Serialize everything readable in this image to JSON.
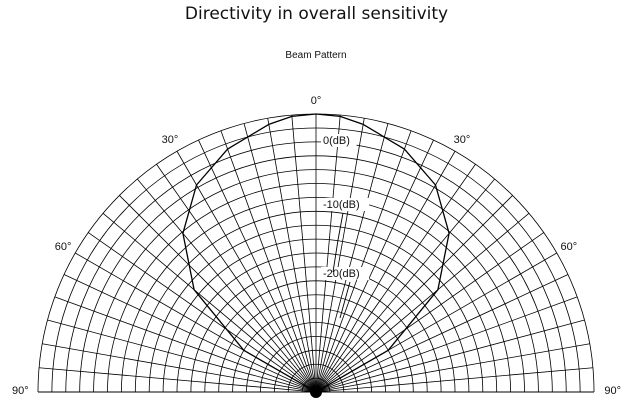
{
  "title": "Directivity in overall sensitivity",
  "chart_data": {
    "type": "polar",
    "subtitle": "Beam Pattern",
    "angle_range_deg": [
      -90,
      90
    ],
    "angle_labels": [
      {
        "angle": 0,
        "text": "0°"
      },
      {
        "angle": -30,
        "text": "30°"
      },
      {
        "angle": 30,
        "text": "30°"
      },
      {
        "angle": -60,
        "text": "60°"
      },
      {
        "angle": 60,
        "text": "60°"
      },
      {
        "angle": -90,
        "text": "90°"
      },
      {
        "angle": 90,
        "text": "90°"
      }
    ],
    "radial_labels": [
      {
        "value": 0,
        "text": "0(dB)"
      },
      {
        "value": -10,
        "text": "-10(dB)"
      },
      {
        "value": -20,
        "text": "-20(dB)"
      }
    ],
    "grid": true,
    "series": [
      {
        "angles_deg": [
          -90,
          -75,
          -60,
          -50,
          -40,
          -30,
          -20,
          -10,
          -5,
          0,
          5,
          10,
          20,
          30,
          40,
          50,
          60,
          75,
          90
        ],
        "values_db": [
          -40,
          -40,
          -28,
          -17.1,
          -10.2,
          -5.6,
          -2.8,
          -0.9,
          -0.2,
          0,
          -0.2,
          -0.9,
          -2.8,
          -5.6,
          -10.2,
          -17.1,
          -28,
          -40,
          -40
        ]
      }
    ]
  }
}
